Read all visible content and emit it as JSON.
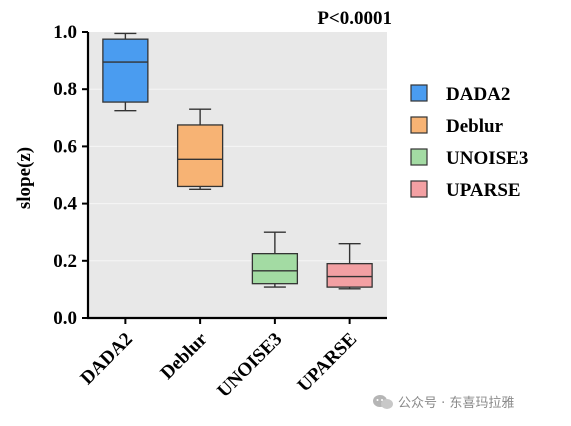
{
  "chart_data": {
    "type": "box",
    "ylabel": "slope(z)",
    "annotation": "P<0.0001",
    "ylim": [
      0,
      1.0
    ],
    "yticks": [
      "0.0",
      "0.2",
      "0.4",
      "0.6",
      "0.8",
      "1.0"
    ],
    "grid": "horizontal, light",
    "background": "#e8e8e8",
    "legend_position": "right",
    "categories": [
      "DADA2",
      "Deblur",
      "UNOISE3",
      "UPARSE"
    ],
    "boxes": [
      {
        "name": "DADA2",
        "whisker_low": 0.725,
        "q1": 0.755,
        "median": 0.895,
        "q3": 0.975,
        "whisker_high": 0.995,
        "color": "#4a9cf0"
      },
      {
        "name": "Deblur",
        "whisker_low": 0.45,
        "q1": 0.46,
        "median": 0.555,
        "q3": 0.675,
        "whisker_high": 0.73,
        "color": "#f7b374"
      },
      {
        "name": "UNOISE3",
        "whisker_low": 0.108,
        "q1": 0.12,
        "median": 0.165,
        "q3": 0.225,
        "whisker_high": 0.3,
        "color": "#a3dba3"
      },
      {
        "name": "UPARSE",
        "whisker_low": 0.102,
        "q1": 0.108,
        "median": 0.145,
        "q3": 0.19,
        "whisker_high": 0.26,
        "color": "#f3a0a3"
      }
    ],
    "legend": [
      "DADA2",
      "Deblur",
      "UNOISE3",
      "UPARSE"
    ]
  },
  "watermark": {
    "text": "公众号 · 东喜玛拉雅"
  }
}
